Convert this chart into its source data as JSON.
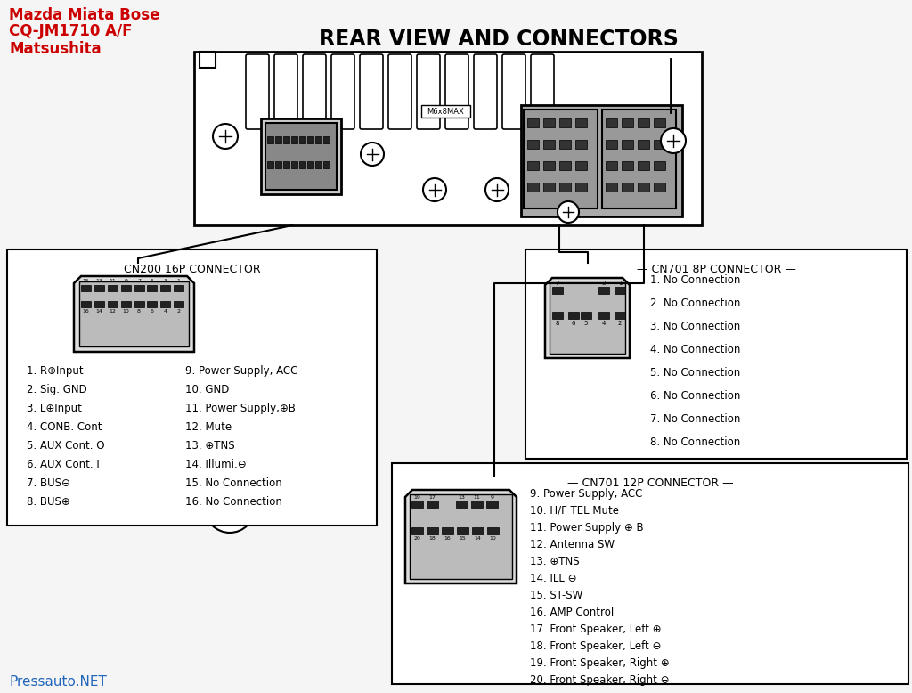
{
  "title": "REAR VIEW AND CONNECTORS",
  "subtitle_line1": "Mazda Miata Bose",
  "subtitle_line2": "CQ-JM1710 A/F",
  "subtitle_line3": "Matsushita",
  "subtitle_color": "#cc0000",
  "watermark": "Pressauto.NET",
  "watermark_color": "#2266bb",
  "bg_color": "#f5f5f5",
  "cn200_title": "CN200 16P CONNECTOR",
  "cn200_entries_col1": [
    "1. R⊕Input",
    "2. Sig. GND",
    "3. L⊕Input",
    "4. CONB. Cont",
    "5. AUX Cont. O",
    "6. AUX Cont. I",
    "7. BUS⊖",
    "8. BUS⊕"
  ],
  "cn200_entries_col2": [
    "9. Power Supply, ACC",
    "10. GND",
    "11. Power Supply,⊕B",
    "12. Mute",
    "13. ⊕TNS",
    "14. Illumi.⊖",
    "15. No Connection",
    "16. No Connection"
  ],
  "cn701_8p_title": "— CN701 8P CONNECTOR —",
  "cn701_8p_entries": [
    "1. No Connection",
    "2. No Connection",
    "3. No Connection",
    "4. No Connection",
    "5. No Connection",
    "6. No Connection",
    "7. No Connection",
    "8. No Connection"
  ],
  "cn701_12p_title": "— CN701 12P CONNECTOR —",
  "cn701_12p_entries": [
    "9. Power Supply, ACC",
    "10. H/F TEL Mute",
    "11. Power Supply ⊕ B",
    "12. Antenna SW",
    "13. ⊕TNS",
    "14. ILL ⊖",
    "15. ST-SW",
    "16. AMP Control",
    "17. Front Speaker, Left ⊕",
    "18. Front Speaker, Left ⊖",
    "19. Front Speaker, Right ⊕",
    "20. Front Speaker, Right ⊖"
  ]
}
